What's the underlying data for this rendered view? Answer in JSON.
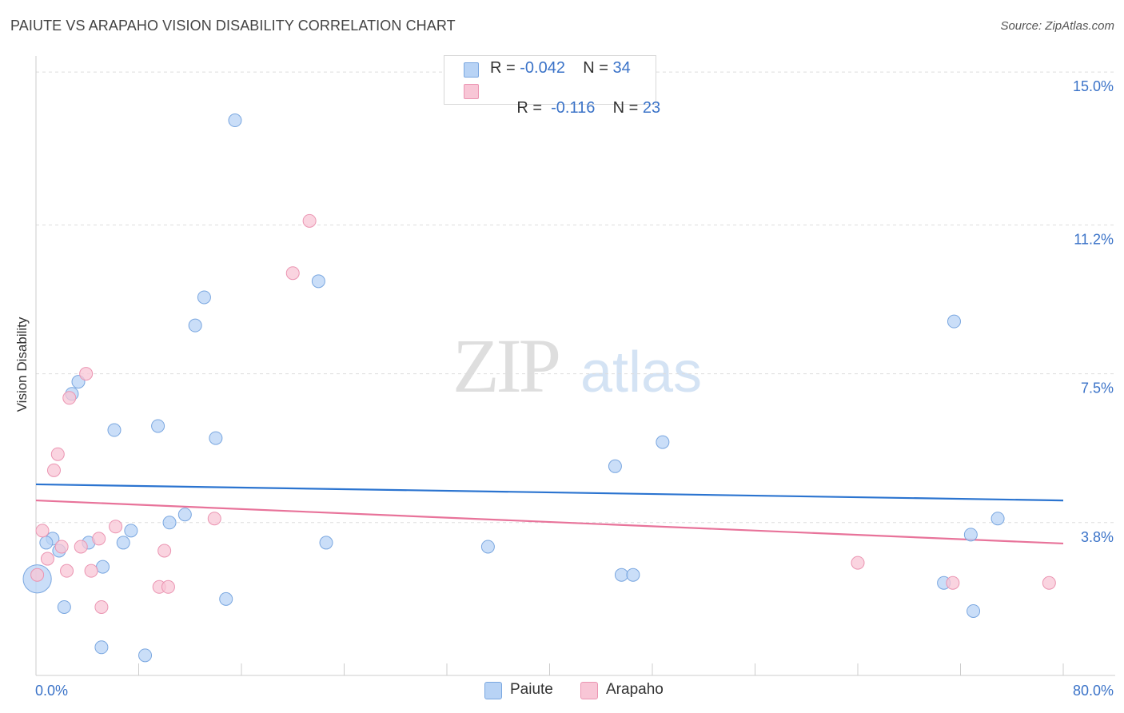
{
  "title": "PAIUTE VS ARAPAHO VISION DISABILITY CORRELATION CHART",
  "source": "Source: ZipAtlas.com",
  "watermark": {
    "zip": "ZIP",
    "atlas": "atlas"
  },
  "colors": {
    "paiute_fill": "#b8d3f5",
    "paiute_stroke": "#7aa7e0",
    "paiute_line": "#2b74d0",
    "arapaho_fill": "#f8c6d6",
    "arapaho_stroke": "#eb95b2",
    "arapaho_line": "#e8739a",
    "grid": "#dddddd",
    "tick_label": "#3b73c8"
  },
  "legend_top": [
    {
      "series": "Paiute",
      "r_label": "R = ",
      "r_value": "-0.042",
      "n_label": "N = ",
      "n_value": "34"
    },
    {
      "series": "Arapaho",
      "r_label": "R = ",
      "r_value": " -0.116",
      "n_label": "N = ",
      "n_value": "23"
    }
  ],
  "legend_bottom": [
    "Paiute",
    "Arapaho"
  ],
  "chart_data": {
    "type": "scatter",
    "title": "PAIUTE VS ARAPAHO VISION DISABILITY CORRELATION CHART",
    "xlabel": "",
    "ylabel": "Vision Disability",
    "xlim": [
      0,
      80
    ],
    "ylim": [
      0,
      15.4
    ],
    "x_tick_labels": [
      "0.0%",
      "80.0%"
    ],
    "y_ticks": [
      3.8,
      7.5,
      11.2,
      15.0
    ],
    "y_tick_labels": [
      "3.8%",
      "7.5%",
      "11.2%",
      "15.0%"
    ],
    "legend_position": "top-center",
    "series": [
      {
        "name": "Paiute",
        "points": [
          [
            15.5,
            13.8
          ],
          [
            22.0,
            9.8
          ],
          [
            13.1,
            9.4
          ],
          [
            12.4,
            8.7
          ],
          [
            71.5,
            8.8
          ],
          [
            3.3,
            7.3
          ],
          [
            2.8,
            7.0
          ],
          [
            6.1,
            6.1
          ],
          [
            9.5,
            6.2
          ],
          [
            14.0,
            5.9
          ],
          [
            48.8,
            5.8
          ],
          [
            45.1,
            5.2
          ],
          [
            11.6,
            4.0
          ],
          [
            10.4,
            3.8
          ],
          [
            74.9,
            3.9
          ],
          [
            7.4,
            3.6
          ],
          [
            1.3,
            3.4
          ],
          [
            0.8,
            3.3
          ],
          [
            4.1,
            3.3
          ],
          [
            6.8,
            3.3
          ],
          [
            22.6,
            3.3
          ],
          [
            35.2,
            3.2
          ],
          [
            1.8,
            3.1
          ],
          [
            72.8,
            3.5
          ],
          [
            5.2,
            2.7
          ],
          [
            0.1,
            2.4
          ],
          [
            45.6,
            2.5
          ],
          [
            46.5,
            2.5
          ],
          [
            2.2,
            1.7
          ],
          [
            14.8,
            1.9
          ],
          [
            70.7,
            2.3
          ],
          [
            73.0,
            1.6
          ],
          [
            5.1,
            0.7
          ],
          [
            8.5,
            0.5
          ]
        ],
        "sizes": [
          1,
          1,
          1,
          1,
          1,
          1,
          1,
          1,
          1,
          1,
          1,
          1,
          1,
          1,
          1,
          1,
          1,
          1,
          1,
          1,
          1,
          1,
          1,
          1,
          1,
          2.2,
          1,
          1,
          1,
          1,
          1,
          1,
          1,
          1
        ]
      },
      {
        "name": "Arapaho",
        "points": [
          [
            21.3,
            11.3
          ],
          [
            20.0,
            10.0
          ],
          [
            3.9,
            7.5
          ],
          [
            2.6,
            6.9
          ],
          [
            1.7,
            5.5
          ],
          [
            1.4,
            5.1
          ],
          [
            13.9,
            3.9
          ],
          [
            6.2,
            3.7
          ],
          [
            0.5,
            3.6
          ],
          [
            4.9,
            3.4
          ],
          [
            2.0,
            3.2
          ],
          [
            3.5,
            3.2
          ],
          [
            10.0,
            3.1
          ],
          [
            0.9,
            2.9
          ],
          [
            64.0,
            2.8
          ],
          [
            2.4,
            2.6
          ],
          [
            4.3,
            2.6
          ],
          [
            9.6,
            2.2
          ],
          [
            10.3,
            2.2
          ],
          [
            78.9,
            2.3
          ],
          [
            71.4,
            2.3
          ],
          [
            5.1,
            1.7
          ],
          [
            0.1,
            2.5
          ]
        ],
        "sizes": [
          1,
          1,
          1,
          1,
          1,
          1,
          1,
          1,
          1,
          1,
          1,
          1,
          1,
          1,
          1,
          1,
          1,
          1,
          1,
          1,
          1,
          1,
          1
        ]
      }
    ],
    "trend_lines": [
      {
        "name": "Paiute",
        "x": [
          0,
          80
        ],
        "y": [
          4.75,
          4.35
        ]
      },
      {
        "name": "Arapaho",
        "x": [
          0,
          80
        ],
        "y": [
          4.35,
          3.28
        ]
      }
    ]
  }
}
